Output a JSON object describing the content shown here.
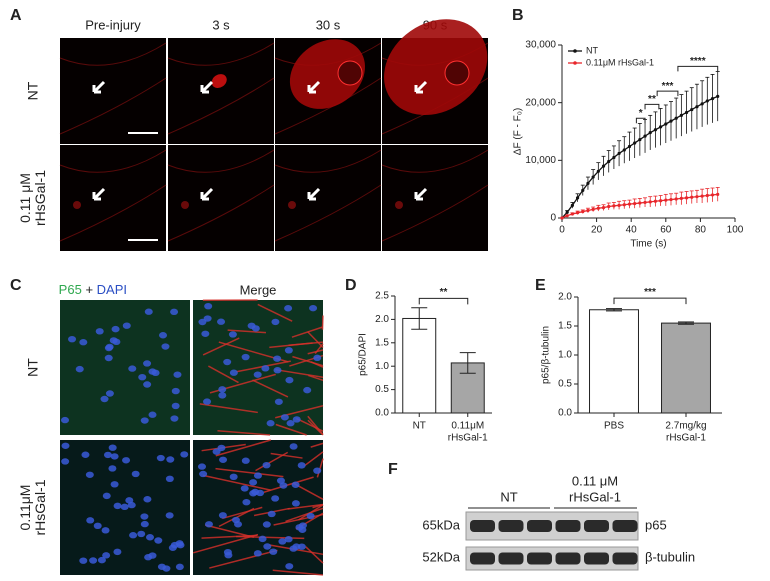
{
  "panels": {
    "A": {
      "label": "A",
      "columns": [
        "Pre-injury",
        "3 s",
        "30 s",
        "90 s"
      ],
      "rows": [
        [
          "NT"
        ],
        [
          "0.11 μM",
          "rHsGal-1"
        ]
      ]
    },
    "B": {
      "label": "B"
    },
    "C": {
      "label": "C",
      "stain": [
        "P65",
        "+",
        "DAPI"
      ],
      "merge": "Merge",
      "rows": [
        [
          "NT"
        ],
        [
          "0.11μM",
          "rHsGal-1"
        ]
      ]
    },
    "D": {
      "label": "D"
    },
    "E": {
      "label": "E"
    },
    "F": {
      "label": "F",
      "groups": [
        [
          "NT"
        ],
        [
          "0.11 μM",
          "rHsGal-1"
        ]
      ],
      "markers": [
        "65kDa",
        "52kDa"
      ],
      "proteins": [
        "p65",
        "β-tubulin"
      ]
    }
  },
  "chart_data": [
    {
      "type": "line",
      "x_label": "Time (s)",
      "y_label": "ΔF (F - F₀)",
      "x": [
        0,
        3,
        6,
        9,
        12,
        15,
        18,
        21,
        24,
        27,
        30,
        33,
        36,
        39,
        42,
        45,
        48,
        51,
        54,
        57,
        60,
        63,
        66,
        69,
        72,
        75,
        78,
        81,
        84,
        87,
        90
      ],
      "series": [
        {
          "name": "NT",
          "color": "#111111",
          "values": [
            0,
            1000,
            2200,
            3500,
            4800,
            6000,
            7100,
            8100,
            9000,
            9800,
            10500,
            11200,
            11800,
            12400,
            13000,
            13600,
            14200,
            14800,
            15300,
            15800,
            16300,
            16800,
            17300,
            17800,
            18300,
            18800,
            19300,
            19800,
            20300,
            20700,
            21100
          ],
          "errors": [
            0,
            300,
            500,
            700,
            900,
            1100,
            1300,
            1500,
            1700,
            1900,
            2000,
            2200,
            2300,
            2500,
            2600,
            2800,
            2900,
            3000,
            3100,
            3200,
            3300,
            3400,
            3500,
            3600,
            3700,
            3800,
            3900,
            4000,
            4100,
            4200,
            4300
          ]
        },
        {
          "name": "0.11μM rHsGal-1",
          "color": "#e8262b",
          "values": [
            0,
            400,
            700,
            900,
            1100,
            1300,
            1500,
            1700,
            1800,
            2000,
            2100,
            2200,
            2300,
            2400,
            2500,
            2600,
            2700,
            2800,
            2900,
            3000,
            3100,
            3200,
            3300,
            3400,
            3500,
            3600,
            3700,
            3800,
            3900,
            4000,
            4100
          ],
          "errors": [
            0,
            100,
            200,
            300,
            300,
            400,
            400,
            500,
            500,
            600,
            600,
            700,
            700,
            700,
            800,
            800,
            800,
            900,
            900,
            900,
            1000,
            1000,
            1000,
            1100,
            1100,
            1100,
            1100,
            1200,
            1200,
            1200,
            1200
          ]
        }
      ],
      "xlim": [
        0,
        100
      ],
      "xticks": [
        0,
        20,
        40,
        60,
        80,
        100
      ],
      "ylim": [
        0,
        30000
      ],
      "yticks": [
        0,
        {
          "value": 10000,
          "label": "10,000"
        },
        {
          "value": 20000,
          "label": "20,000"
        },
        {
          "value": 30000,
          "label": "30,000"
        }
      ],
      "legend": "top-left",
      "significance": [
        {
          "x1": 43,
          "x2": 48,
          "y": 17300,
          "label": "*"
        },
        {
          "x1": 48,
          "x2": 56,
          "y": 19700,
          "label": "**"
        },
        {
          "x1": 55,
          "x2": 67,
          "y": 22000,
          "label": "***"
        },
        {
          "x1": 67,
          "x2": 90,
          "y": 26300,
          "label": "****"
        }
      ]
    },
    {
      "type": "bar",
      "y_label": "p65/DAPI",
      "categories": [
        [
          "NT"
        ],
        [
          "0.11μM",
          "rHsGal-1"
        ]
      ],
      "values": [
        2.02,
        1.07
      ],
      "errors": [
        0.23,
        0.22
      ],
      "colors": [
        "#ffffff",
        "#a6a6a6"
      ],
      "ylim": [
        0,
        2.5
      ],
      "yticks": [
        {
          "value": 0,
          "label": "0.0"
        },
        {
          "value": 0.5,
          "label": "0.5"
        },
        {
          "value": 1,
          "label": "1.0"
        },
        {
          "value": 1.5,
          "label": "1.5"
        },
        {
          "value": 2,
          "label": "2.0"
        },
        {
          "value": 2.5,
          "label": "2.5"
        }
      ],
      "significance": [
        {
          "y": 2.45,
          "label": "**"
        }
      ]
    },
    {
      "type": "bar",
      "y_label": "p65/β-tubulin",
      "categories": [
        [
          "PBS"
        ],
        [
          "2.7mg/kg",
          "rHsGal-1"
        ]
      ],
      "values": [
        1.78,
        1.55
      ],
      "errors": [
        0.02,
        0.02
      ],
      "colors": [
        "#ffffff",
        "#a6a6a6"
      ],
      "ylim": [
        0,
        2.0
      ],
      "yticks": [
        {
          "value": 0,
          "label": "0.0"
        },
        {
          "value": 0.5,
          "label": "0.5"
        },
        {
          "value": 1,
          "label": "1.0"
        },
        {
          "value": 1.5,
          "label": "1.5"
        },
        {
          "value": 2,
          "label": "2.0"
        }
      ],
      "significance": [
        {
          "y": 1.98,
          "label": "***"
        }
      ]
    }
  ]
}
